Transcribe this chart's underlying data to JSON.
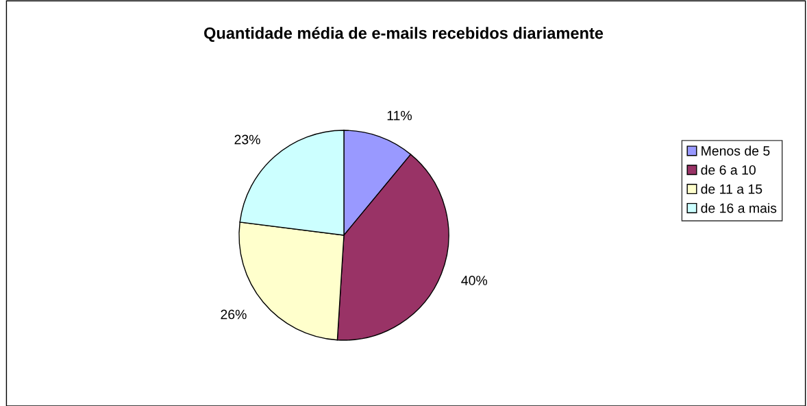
{
  "chart_data": {
    "type": "pie",
    "title": "Quantidade média de e-mails recebidos diariamente",
    "categories": [
      "Menos de 5",
      "de 6 a 10",
      "de 11 a 15",
      "de 16 a mais"
    ],
    "values": [
      11,
      40,
      26,
      23
    ],
    "colors": [
      "#9999ff",
      "#993366",
      "#ffffcc",
      "#ccffff"
    ],
    "value_labels": [
      "11%",
      "40%",
      "26%",
      "23%"
    ],
    "legend": "right"
  }
}
